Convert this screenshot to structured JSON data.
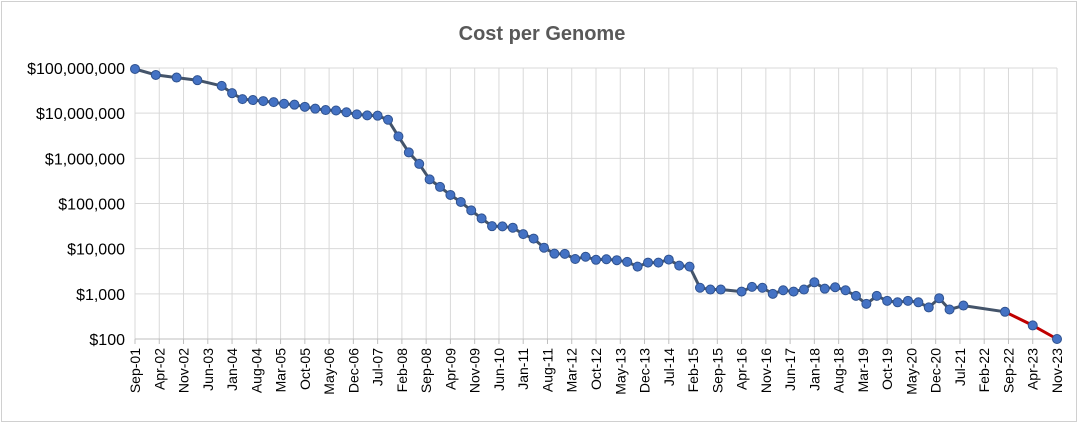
{
  "chart_data": {
    "type": "line",
    "title": "Cost per Genome",
    "xlabel": "",
    "ylabel": "",
    "y_scale": "log",
    "ylim": [
      100,
      100000000
    ],
    "y_tick_values": [
      100,
      1000,
      10000,
      100000,
      1000000,
      10000000,
      100000000
    ],
    "y_tick_labels": [
      "$100",
      "$1,000",
      "$10,000",
      "$100,000",
      "$1,000,000",
      "$10,000,000",
      "$100,000,000"
    ],
    "x_tick_labels": [
      "Sep-01",
      "Apr-02",
      "Nov-02",
      "Jun-03",
      "Jan-04",
      "Aug-04",
      "Mar-05",
      "Oct-05",
      "May-06",
      "Dec-06",
      "Jul-07",
      "Feb-08",
      "Sep-08",
      "Apr-09",
      "Nov-09",
      "Jun-10",
      "Jan-11",
      "Aug-11",
      "Mar-12",
      "Oct-12",
      "May-13",
      "Dec-13",
      "Jul-14",
      "Feb-15",
      "Sep-15",
      "Apr-16",
      "Nov-16",
      "Jun-17",
      "Jan-18",
      "Aug-18",
      "Mar-19",
      "Oct-19",
      "May-20",
      "Dec-20",
      "Jul-21",
      "Feb-22",
      "Sep-22",
      "Apr-23",
      "Nov-23"
    ],
    "grid": true,
    "legend": "none",
    "colors": {
      "line": "#44546a",
      "marker_fill": "#4472c4",
      "marker_stroke": "#2f528f",
      "projection": "#c00000"
    },
    "series": [
      {
        "x": [
          "Sep-01",
          "Mar-02",
          "Sep-02",
          "Mar-03",
          "Oct-03",
          "Jan-04",
          "Apr-04",
          "Jul-04",
          "Oct-04",
          "Jan-05",
          "Apr-05",
          "Jul-05",
          "Oct-05",
          "Jan-06",
          "Apr-06",
          "Jul-06",
          "Oct-06",
          "Jan-07",
          "Apr-07",
          "Jul-07",
          "Oct-07",
          "Jan-08",
          "Apr-08",
          "Jul-08",
          "Oct-08",
          "Jan-09",
          "Apr-09",
          "Jul-09",
          "Oct-09",
          "Jan-10",
          "Apr-10",
          "Jul-10",
          "Oct-10",
          "Jan-11",
          "Apr-11",
          "Jul-11",
          "Oct-11",
          "Jan-12",
          "Apr-12",
          "Jul-12",
          "Oct-12",
          "Jan-13",
          "Apr-13",
          "Jul-13",
          "Oct-13",
          "Jan-14",
          "Apr-14",
          "Jul-14",
          "Oct-14",
          "Jan-15",
          "Apr-15",
          "Jul-15",
          "Oct-15",
          "Apr-16",
          "Jul-16",
          "Oct-16",
          "Jan-17",
          "Apr-17",
          "Jul-17",
          "Oct-17",
          "Jan-18",
          "Apr-18",
          "Jul-18",
          "Oct-18",
          "Jan-19",
          "Apr-19",
          "Jul-19",
          "Oct-19",
          "Jan-20",
          "Apr-20",
          "Jul-20",
          "Oct-20",
          "Jan-21",
          "Apr-21",
          "Aug-21",
          "Aug-22"
        ],
        "values": [
          95263072,
          70175437,
          61448422,
          53751684,
          40157554,
          27698284,
          20442576,
          19504634,
          18519069,
          17534608,
          16159837,
          15434683,
          13801124,
          12585242,
          11732535,
          11455315,
          10474556,
          9408739,
          8927342,
          8808000,
          7147571,
          3063820,
          1352982,
          752080,
          342502,
          232735,
          154714,
          108065,
          70333,
          46774,
          31512,
          31125,
          29092,
          20963,
          16712,
          10497,
          7743,
          7666,
          5901,
          6618,
          5671,
          5826,
          5550,
          5096,
          4008,
          4920,
          4905,
          5731,
          4211,
          4000,
          1363,
          1245,
          1245,
          1121,
          1425,
          1363,
          1000,
          1200,
          1121,
          1245,
          1800,
          1300,
          1400,
          1200,
          900,
          600,
          900,
          700,
          650,
          700,
          650,
          500,
          800,
          450,
          550,
          400
        ]
      },
      {
        "name": "",
        "x": [
          "Aug-22",
          "Apr-23",
          "Nov-23"
        ],
        "values": [
          400,
          200,
          100
        ]
      }
    ]
  }
}
